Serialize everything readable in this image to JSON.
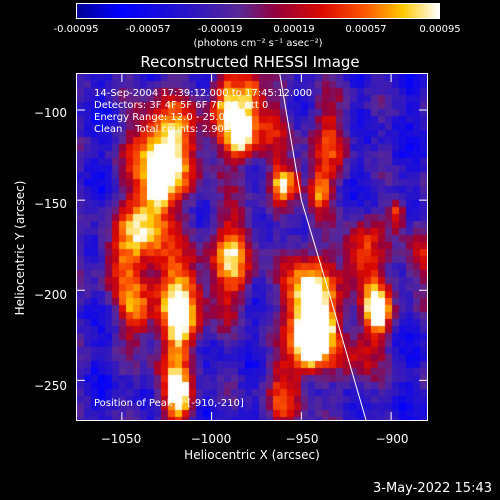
{
  "chart_data": {
    "type": "heatmap",
    "title": "Reconstructed RHESSI Image",
    "xlabel": "Heliocentric X (arcsec)",
    "ylabel": "Heliocentric Y (arcsec)",
    "xlim": [
      -1075,
      -880
    ],
    "ylim": [
      -272,
      -80
    ],
    "x_ticks": [
      -1050,
      -1000,
      -950,
      -900
    ],
    "x_tick_labels": [
      "−1050",
      "−1000",
      "−950",
      "−900"
    ],
    "y_ticks": [
      -100,
      -150,
      -200,
      -250
    ],
    "y_tick_labels": [
      "−100",
      "−150",
      "−200",
      "−250"
    ],
    "colorbar": {
      "range": [
        -0.00095,
        0.00095
      ],
      "ticks": [
        -0.00095,
        -0.00057,
        -0.00019,
        0.00019,
        0.00057,
        0.00095
      ],
      "tick_labels": [
        "-0.00095",
        "-0.00057",
        "-0.00019",
        "0.00019",
        "0.00057",
        "0.00095"
      ],
      "unit": "(photons cm⁻² s⁻¹ asec⁻²)"
    },
    "annotations": [
      "14-Sep-2004 17:39:12.000 to 17:45:12.000",
      "Detectors: 3F 4F 5F 6F 7F 8F, Att 0",
      "Energy Range: 12.0 - 25.0 keV",
      "Clean    Total counts: 2.90E+03"
    ],
    "peak_label": "Position of Peak = [-910,-210]",
    "peak_position": [
      -910,
      -210
    ],
    "limb_curve": [
      [
        -962,
        -80
      ],
      [
        -950,
        -150
      ],
      [
        -935,
        -200
      ],
      [
        -914,
        -272
      ]
    ]
  },
  "timestamp": "3-May-2022 15:43"
}
